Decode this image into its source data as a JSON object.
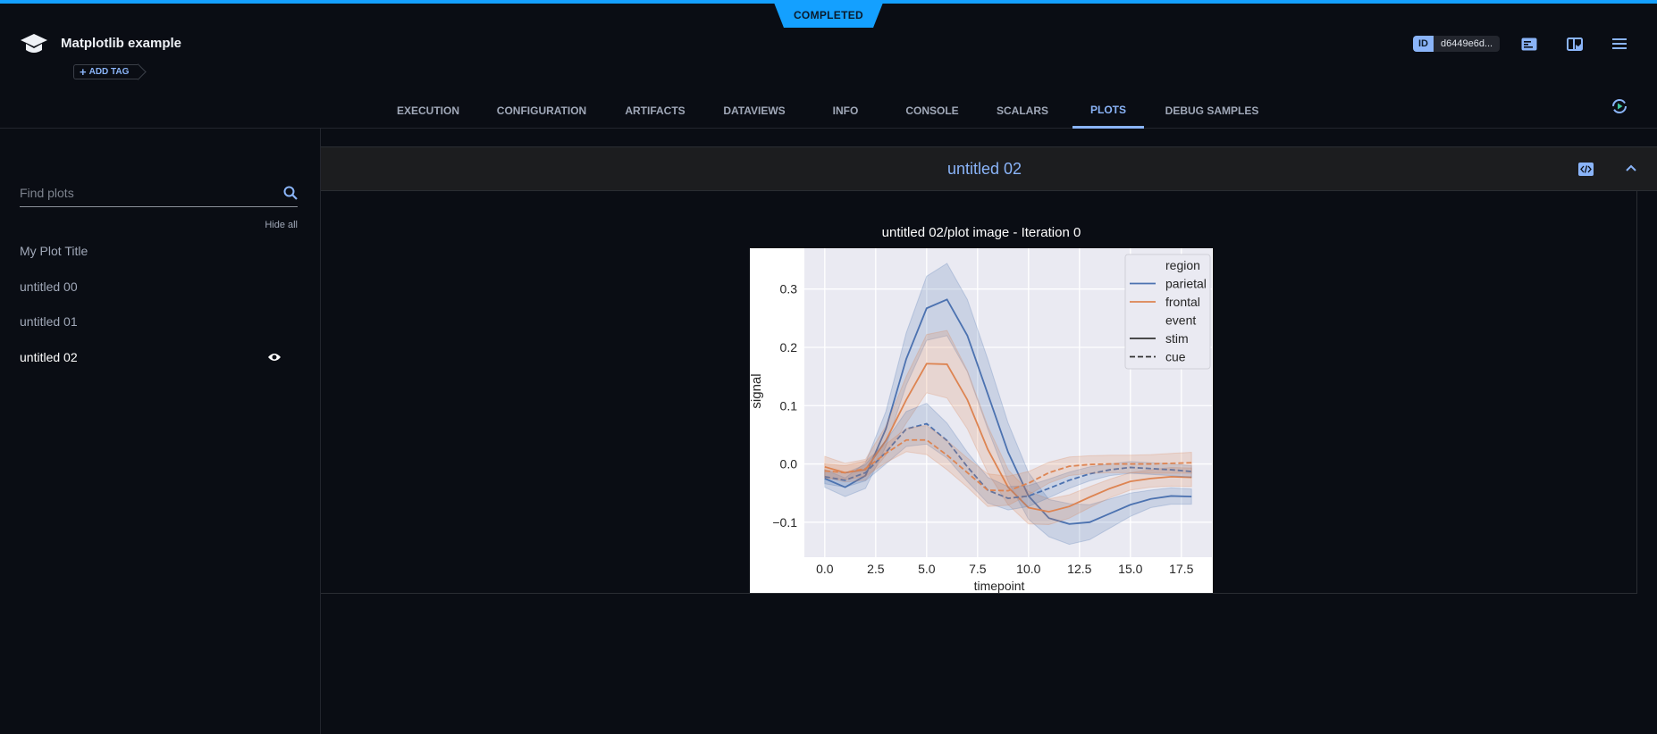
{
  "status": "COMPLETED",
  "header": {
    "title": "Matplotlib example",
    "add_tag": "ADD TAG",
    "id_label": "ID",
    "id_value": "d6449e6d...",
    "icons": [
      "info-panel-icon",
      "layout-icon",
      "menu-icon"
    ]
  },
  "tabs": [
    {
      "label": "EXECUTION"
    },
    {
      "label": "CONFIGURATION"
    },
    {
      "label": "ARTIFACTS"
    },
    {
      "label": "DATAVIEWS"
    },
    {
      "label": "INFO"
    },
    {
      "label": "CONSOLE"
    },
    {
      "label": "SCALARS"
    },
    {
      "label": "PLOTS",
      "active": true
    },
    {
      "label": "DEBUG SAMPLES"
    }
  ],
  "sidebar": {
    "search_placeholder": "Find plots",
    "hide_all": "Hide all",
    "items": [
      {
        "label": "My Plot Title"
      },
      {
        "label": "untitled 00"
      },
      {
        "label": "untitled 01"
      },
      {
        "label": "untitled 02",
        "active": true
      }
    ]
  },
  "panel": {
    "title": "untitled 02",
    "plot_title": "untitled 02/plot image - Iteration 0"
  },
  "colors": {
    "accent": "#8ab4f8",
    "status": "#14a0ff",
    "parietal": "#4c72b0",
    "frontal": "#dd8452"
  },
  "chart_data": {
    "type": "line",
    "xlabel": "timepoint",
    "ylabel": "signal",
    "xlim": [
      -1,
      19
    ],
    "ylim": [
      -0.16,
      0.37
    ],
    "xticks": [
      "0.0",
      "2.5",
      "5.0",
      "7.5",
      "10.0",
      "12.5",
      "15.0",
      "17.5"
    ],
    "yticks": [
      "-0.1",
      "0.0",
      "0.1",
      "0.2",
      "0.3"
    ],
    "grid": true,
    "legend_placement": "top-right",
    "legend": {
      "region_title": "region",
      "event_title": "event",
      "regions": [
        "parietal",
        "frontal"
      ],
      "events": [
        "stim",
        "cue"
      ]
    },
    "x": [
      0,
      1,
      2,
      3,
      4,
      5,
      6,
      7,
      8,
      9,
      10,
      11,
      12,
      13,
      14,
      15,
      16,
      17,
      18
    ],
    "series": [
      {
        "region": "parietal",
        "event": "stim",
        "values": [
          -0.025,
          -0.04,
          -0.02,
          0.06,
          0.18,
          0.267,
          0.282,
          0.22,
          0.12,
          0.02,
          -0.055,
          -0.093,
          -0.103,
          -0.1,
          -0.085,
          -0.07,
          -0.06,
          -0.055,
          -0.056
        ],
        "ci": [
          0.015,
          0.016,
          0.022,
          0.03,
          0.045,
          0.055,
          0.062,
          0.062,
          0.06,
          0.05,
          0.04,
          0.032,
          0.035,
          0.03,
          0.025,
          0.02,
          0.015,
          0.014,
          0.013
        ]
      },
      {
        "region": "frontal",
        "event": "stim",
        "values": [
          -0.005,
          -0.015,
          -0.01,
          0.04,
          0.11,
          0.172,
          0.171,
          0.11,
          0.025,
          -0.04,
          -0.075,
          -0.082,
          -0.073,
          -0.057,
          -0.042,
          -0.03,
          -0.025,
          -0.022,
          -0.023
        ],
        "ci": [
          0.018,
          0.016,
          0.018,
          0.025,
          0.04,
          0.05,
          0.058,
          0.05,
          0.04,
          0.03,
          0.028,
          0.022,
          0.02,
          0.018,
          0.016,
          0.015,
          0.015,
          0.016,
          0.016
        ]
      },
      {
        "region": "parietal",
        "event": "cue",
        "values": [
          -0.022,
          -0.028,
          -0.015,
          0.02,
          0.06,
          0.069,
          0.04,
          -0.005,
          -0.045,
          -0.059,
          -0.055,
          -0.042,
          -0.028,
          -0.017,
          -0.01,
          -0.006,
          -0.008,
          -0.01,
          -0.013
        ],
        "ci": [
          0.012,
          0.012,
          0.014,
          0.02,
          0.03,
          0.035,
          0.03,
          0.025,
          0.022,
          0.02,
          0.018,
          0.016,
          0.014,
          0.012,
          0.01,
          0.01,
          0.01,
          0.01,
          0.01
        ]
      },
      {
        "region": "frontal",
        "event": "cue",
        "values": [
          -0.012,
          -0.015,
          -0.008,
          0.018,
          0.041,
          0.041,
          0.015,
          -0.015,
          -0.045,
          -0.046,
          -0.033,
          -0.015,
          -0.004,
          -0.001,
          0,
          0,
          0,
          0.001,
          0.002
        ],
        "ci": [
          0.012,
          0.012,
          0.013,
          0.016,
          0.02,
          0.025,
          0.025,
          0.025,
          0.028,
          0.025,
          0.02,
          0.018,
          0.016,
          0.015,
          0.015,
          0.015,
          0.016,
          0.017,
          0.018
        ]
      }
    ]
  }
}
